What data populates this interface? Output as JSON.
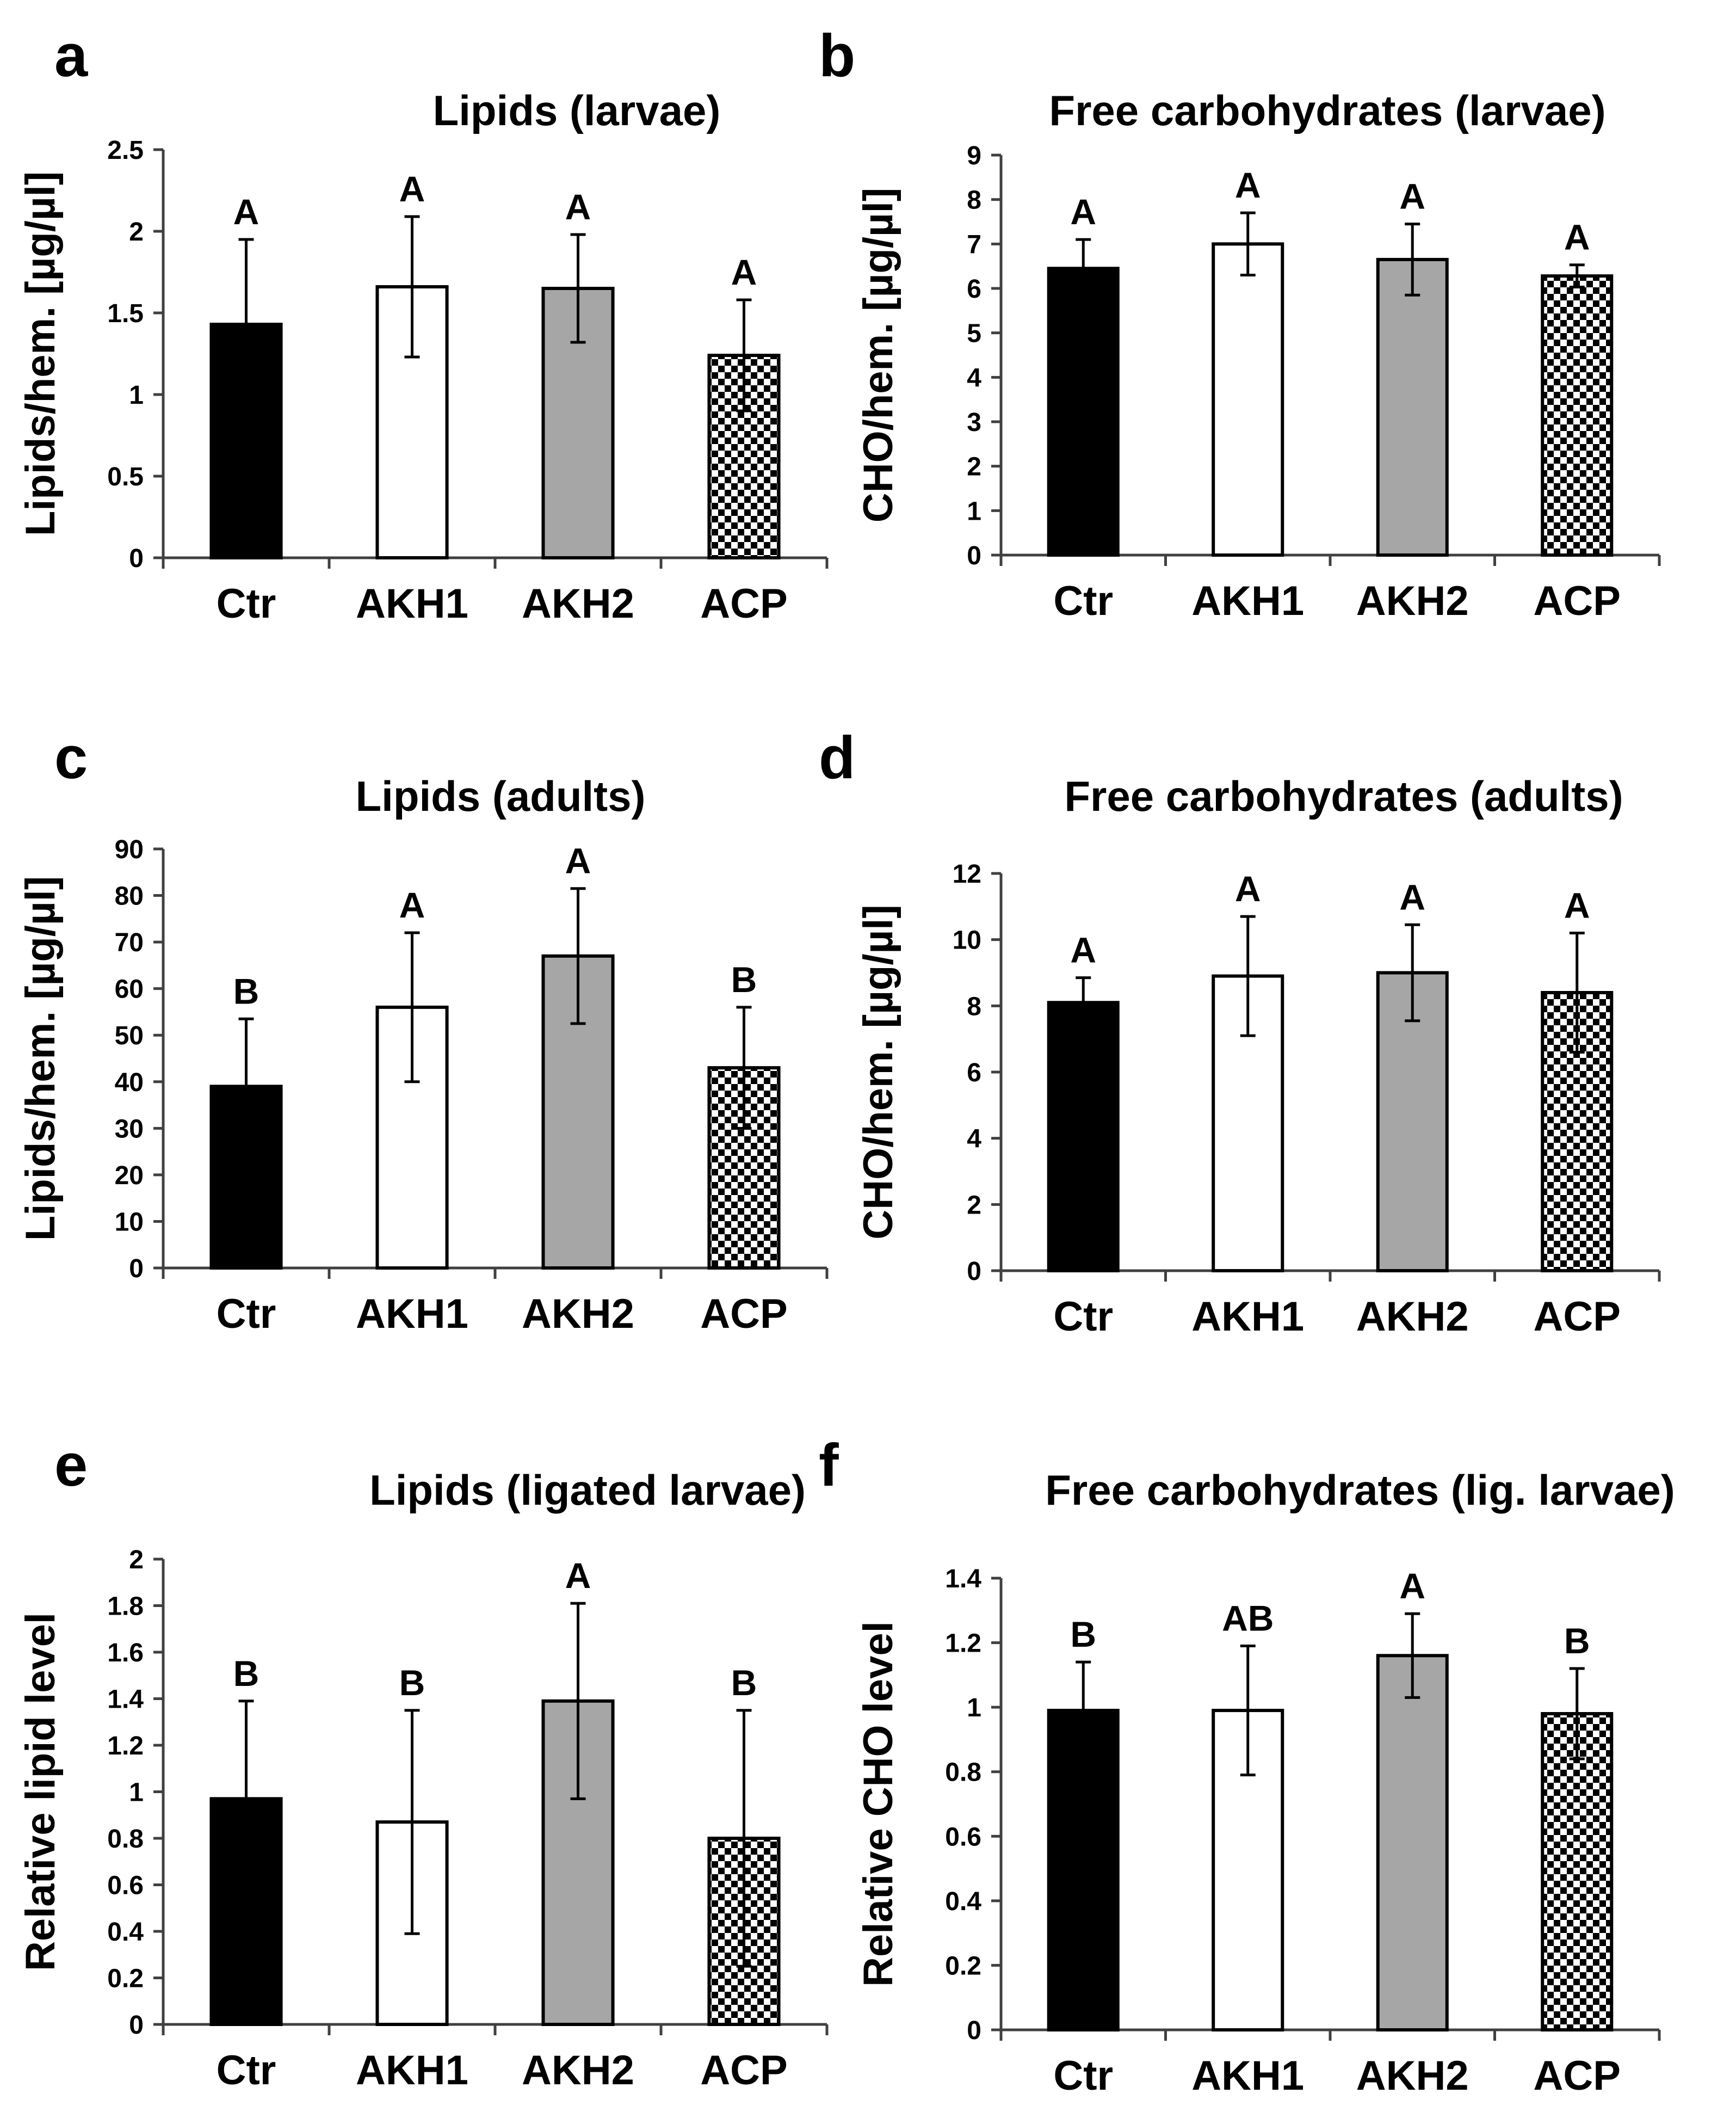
{
  "figure": {
    "groups": [
      "Ctr",
      "AKH1",
      "AKH2",
      "ACP"
    ]
  },
  "styles": {
    "fills": [
      "#000000",
      "#ffffff",
      "#a6a6a6",
      "checker"
    ],
    "checker_dark": "#000000",
    "checker_light": "#ffffff",
    "axis_color": "#404040",
    "text_color": "#000000"
  },
  "chart_data": [
    {
      "panel": "a",
      "type": "bar",
      "title": "Lipids (larvae)",
      "ylabel": "Lipids/hem. [µg/µl]",
      "xlabel": "",
      "categories": [
        "Ctr",
        "AKH1",
        "AKH2",
        "ACP"
      ],
      "values": [
        1.43,
        1.66,
        1.65,
        1.24
      ],
      "errors": [
        0.52,
        0.43,
        0.33,
        0.34
      ],
      "letters": [
        "A",
        "A",
        "A",
        "A"
      ],
      "ylim": [
        0,
        2.5
      ],
      "ticks": [
        "0",
        "0.5",
        "1",
        "1.5",
        "2",
        "2.5"
      ]
    },
    {
      "panel": "b",
      "type": "bar",
      "title": "Free carbohydrates (larvae)",
      "ylabel": "CHO/hem. [µg/µl]",
      "xlabel": "",
      "categories": [
        "Ctr",
        "AKH1",
        "AKH2",
        "ACP"
      ],
      "values": [
        6.45,
        7.0,
        6.65,
        6.28
      ],
      "errors": [
        0.65,
        0.7,
        0.8,
        0.25
      ],
      "letters": [
        "A",
        "A",
        "A",
        "A"
      ],
      "ylim": [
        0,
        9
      ],
      "ticks": [
        "0",
        "1",
        "2",
        "3",
        "4",
        "5",
        "6",
        "7",
        "8",
        "9"
      ]
    },
    {
      "panel": "c",
      "type": "bar",
      "title": "Lipids (adults)",
      "ylabel": "Lipids/hem. [µg/µl]",
      "xlabel": "",
      "categories": [
        "Ctr",
        "AKH1",
        "AKH2",
        "ACP"
      ],
      "values": [
        39,
        56,
        67,
        43
      ],
      "errors": [
        14.5,
        16,
        14.5,
        13
      ],
      "letters": [
        "B",
        "A",
        "A",
        "B"
      ],
      "ylim": [
        0,
        90
      ],
      "ticks": [
        "0",
        "10",
        "20",
        "30",
        "40",
        "50",
        "60",
        "70",
        "80",
        "90"
      ]
    },
    {
      "panel": "d",
      "type": "bar",
      "title": "Free carbohydrates (adults)",
      "ylabel": "CHO/hem. [µg/µl]",
      "xlabel": "",
      "categories": [
        "Ctr",
        "AKH1",
        "AKH2",
        "ACP"
      ],
      "values": [
        8.1,
        8.9,
        9.0,
        8.4
      ],
      "errors": [
        0.75,
        1.8,
        1.45,
        1.8
      ],
      "letters": [
        "A",
        "A",
        "A",
        "A"
      ],
      "ylim": [
        0,
        12
      ],
      "ticks": [
        "0",
        "2",
        "4",
        "6",
        "8",
        "10",
        "12"
      ]
    },
    {
      "panel": "e",
      "type": "bar",
      "title": "Lipids (ligated larvae)",
      "ylabel": "Relative lipid level",
      "xlabel": "",
      "categories": [
        "Ctr",
        "AKH1",
        "AKH2",
        "ACP"
      ],
      "values": [
        0.97,
        0.87,
        1.39,
        0.8
      ],
      "errors": [
        0.42,
        0.48,
        0.42,
        0.55
      ],
      "letters": [
        "B",
        "B",
        "A",
        "B"
      ],
      "ylim": [
        0,
        2
      ],
      "ticks": [
        "0",
        "0.2",
        "0.4",
        "0.6",
        "0.8",
        "1",
        "1.2",
        "1.4",
        "1.6",
        "1.8",
        "2"
      ]
    },
    {
      "panel": "f",
      "type": "bar",
      "title": "Free carbohydrates (lig. larvae)",
      "ylabel": "Relative CHO level",
      "xlabel": "",
      "categories": [
        "Ctr",
        "AKH1",
        "AKH2",
        "ACP"
      ],
      "values": [
        0.99,
        0.99,
        1.16,
        0.98
      ],
      "errors": [
        0.15,
        0.2,
        0.13,
        0.14
      ],
      "letters": [
        "B",
        "AB",
        "A",
        "B"
      ],
      "ylim": [
        0,
        1.4
      ],
      "ticks": [
        "0",
        "0.2",
        "0.4",
        "0.6",
        "0.8",
        "1",
        "1.2",
        "1.4"
      ]
    }
  ]
}
